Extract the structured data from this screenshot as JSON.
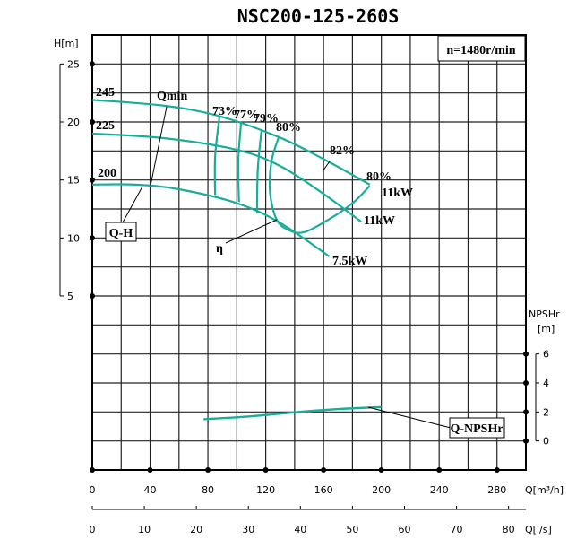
{
  "chart_data": {
    "type": "line",
    "title": "NSC200-125-260S",
    "speed_label": "n=1480r/min",
    "x_axis": {
      "label": "Q[m³/h]",
      "range": [
        0,
        300
      ],
      "ticks": [
        0,
        40,
        80,
        120,
        160,
        200,
        240,
        280
      ],
      "grid_step": 20
    },
    "x2_axis": {
      "label": "Q[l/s]",
      "ticks": [
        0,
        10,
        20,
        30,
        40,
        50,
        60,
        70,
        80
      ]
    },
    "y_axis": {
      "label": "H[m]",
      "range": [
        -10,
        27.5
      ],
      "ticks": [
        5,
        10,
        15,
        20,
        25
      ],
      "grid_step": 2.5
    },
    "y2_axis": {
      "label_top": "NPSHr",
      "label_unit": "[m]",
      "range": [
        -2,
        28
      ],
      "ticks": [
        0,
        2,
        4,
        6
      ]
    },
    "grid": true,
    "curve_color": "#1aae9a",
    "head_curves": [
      {
        "name": "245",
        "power_label": "11kW",
        "points": [
          [
            0,
            21.9
          ],
          [
            50,
            21.4
          ],
          [
            88,
            20.5
          ],
          [
            129,
            18.7
          ],
          [
            160,
            16.8
          ],
          [
            192,
            14.6
          ]
        ]
      },
      {
        "name": "225",
        "power_label": "11kW",
        "points": [
          [
            0,
            19.0
          ],
          [
            50,
            18.6
          ],
          [
            100,
            17.6
          ],
          [
            130,
            16.2
          ],
          [
            160,
            13.8
          ],
          [
            186,
            11.4
          ]
        ]
      },
      {
        "name": "200",
        "power_label": "7.5kW",
        "points": [
          [
            0,
            14.6
          ],
          [
            30,
            14.6
          ],
          [
            60,
            14.2
          ],
          [
            100,
            13.0
          ],
          [
            130,
            11.3
          ],
          [
            164,
            8.4
          ]
        ]
      }
    ],
    "efficiency_curves": [
      {
        "name": "73%",
        "points": [
          [
            88,
            20.5
          ],
          [
            85,
            17.0
          ],
          [
            85,
            13.7
          ]
        ]
      },
      {
        "name": "77%",
        "points": [
          [
            103,
            20.0
          ],
          [
            101,
            16.6
          ],
          [
            101.5,
            13.1
          ]
        ]
      },
      {
        "name": "79%",
        "points": [
          [
            117,
            19.2
          ],
          [
            114.5,
            15.9
          ],
          [
            114,
            12.1
          ]
        ]
      },
      {
        "name": "80%",
        "points": [
          [
            129,
            18.7
          ],
          [
            124,
            16.6
          ],
          [
            123,
            13.9
          ],
          [
            127.5,
            11.6
          ],
          [
            135.6,
            10.7
          ],
          [
            146.7,
            10.5
          ],
          [
            165,
            11.7
          ],
          [
            181,
            13.1
          ],
          [
            192,
            14.5
          ]
        ]
      }
    ],
    "efficiency_labels": [
      "73%",
      "77%",
      "79%",
      "80%",
      "82%",
      "80%"
    ],
    "npsh_curve": {
      "name": "Q-NPSHr",
      "points": [
        [
          77,
          1.5
        ],
        [
          110,
          1.7
        ],
        [
          140,
          1.98
        ],
        [
          170,
          2.2
        ],
        [
          200,
          2.34
        ]
      ]
    },
    "annotations": {
      "qmin": "Qmin",
      "qh": "Q-H",
      "eta": "η",
      "qnpsh": "Q-NPSHr"
    }
  }
}
